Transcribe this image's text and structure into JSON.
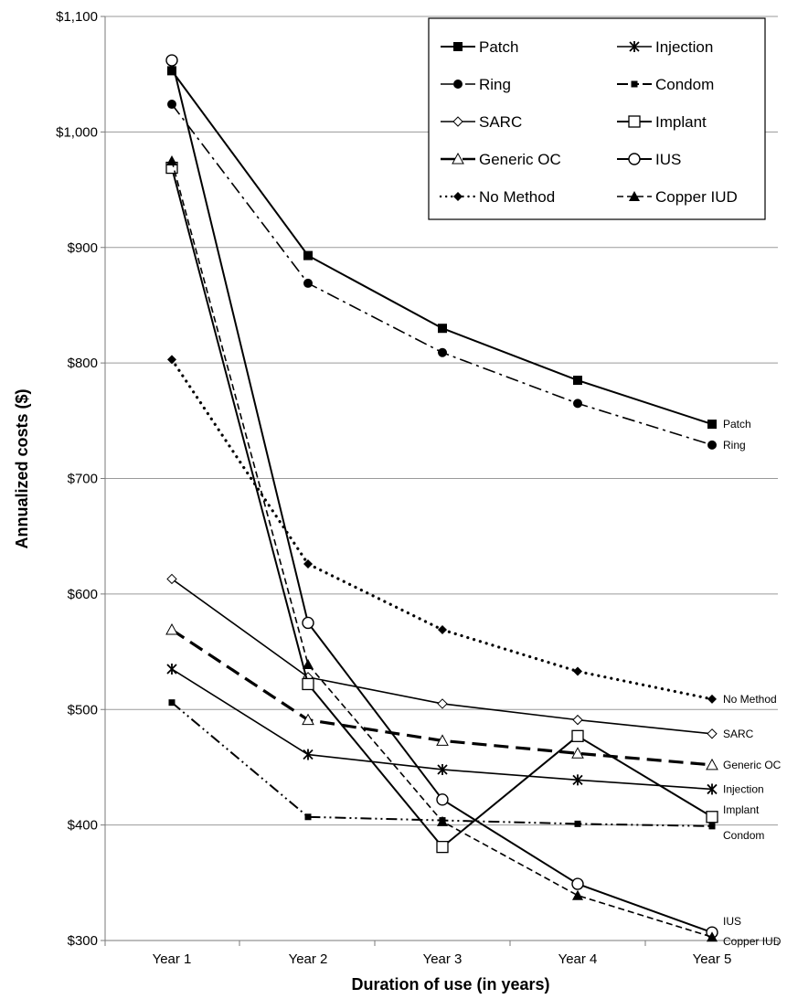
{
  "chart_data": {
    "type": "line",
    "title": "",
    "xlabel": "Duration of use (in years)",
    "ylabel": "Annualized costs ($)",
    "categories": [
      "Year 1",
      "Year 2",
      "Year 3",
      "Year 4",
      "Year 5"
    ],
    "ylim": [
      300,
      1100
    ],
    "yticks": [
      300,
      400,
      500,
      600,
      700,
      800,
      900,
      1000,
      1100
    ],
    "ytick_labels": [
      "$300",
      "$400",
      "$500",
      "$600",
      "$700",
      "$800",
      "$900",
      "$1,000",
      "$1,100"
    ],
    "grid": "horizontal",
    "legend_position": "top-right",
    "series": [
      {
        "name": "Patch",
        "end_label": "Patch",
        "values": [
          1053,
          893,
          830,
          785,
          747
        ],
        "marker": "square-filled",
        "dash": "solid",
        "width": 2
      },
      {
        "name": "Ring",
        "end_label": "Ring",
        "values": [
          1024,
          869,
          809,
          765,
          729
        ],
        "marker": "circle-filled",
        "dash": "dashdot",
        "width": 1.6
      },
      {
        "name": "SARC",
        "end_label": "SARC",
        "values": [
          613,
          528,
          505,
          491,
          479
        ],
        "marker": "diamond-open",
        "dash": "solid",
        "width": 1.6
      },
      {
        "name": "Generic OC",
        "end_label": "Generic OC",
        "values": [
          569,
          491,
          473,
          462,
          452
        ],
        "marker": "triangle-open",
        "dash": "longdash",
        "width": 3.2
      },
      {
        "name": "No Method",
        "end_label": "No Method",
        "values": [
          803,
          626,
          569,
          533,
          509
        ],
        "marker": "diamond-filled",
        "dash": "dotted",
        "width": 3.2
      },
      {
        "name": "Injection",
        "end_label": "Injection",
        "values": [
          535,
          461,
          448,
          439,
          431
        ],
        "marker": "asterisk",
        "dash": "solid",
        "width": 1.6
      },
      {
        "name": "Condom",
        "end_label": "Condom",
        "values": [
          506,
          407,
          404,
          401,
          399
        ],
        "marker": "square-small",
        "dash": "dashdotdot",
        "width": 2
      },
      {
        "name": "Implant",
        "end_label": "Implant",
        "values": [
          969,
          522,
          381,
          477,
          407
        ],
        "marker": "square-open",
        "dash": "solid",
        "width": 2
      },
      {
        "name": "IUS",
        "end_label": "IUS",
        "values": [
          1062,
          575,
          422,
          349,
          307
        ],
        "marker": "circle-open",
        "dash": "solid",
        "width": 2
      },
      {
        "name": "Copper IUD",
        "end_label": "Copper IUD",
        "values": [
          975,
          539,
          403,
          339,
          303
        ],
        "marker": "triangle-filled",
        "dash": "shortdash",
        "width": 1.6
      }
    ],
    "legend_order": [
      [
        "Patch",
        "Injection"
      ],
      [
        "Ring",
        "Condom"
      ],
      [
        "SARC",
        "Implant"
      ],
      [
        "Generic OC",
        "IUS"
      ],
      [
        "No Method",
        "Copper IUD"
      ]
    ]
  }
}
